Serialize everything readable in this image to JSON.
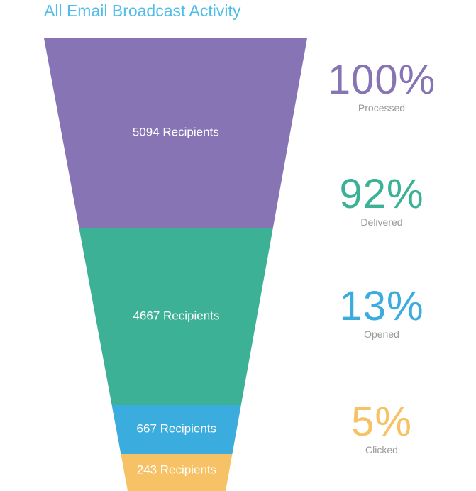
{
  "title": "All Email Broadcast Activity",
  "colors": {
    "title": "#4fbde9",
    "stage_colors": [
      "#8674b5",
      "#3db195",
      "#3aacdd",
      "#f7c265"
    ]
  },
  "chart_data": {
    "type": "funnel",
    "title": "All Email Broadcast Activity",
    "stages": [
      {
        "recipients": 5094,
        "label": "5094 Recipients",
        "percent": "100%",
        "status": "Processed"
      },
      {
        "recipients": 4667,
        "label": "4667 Recipients",
        "percent": "92%",
        "status": "Delivered"
      },
      {
        "recipients": 667,
        "label": "667 Recipients",
        "percent": "13%",
        "status": "Opened"
      },
      {
        "recipients": 243,
        "label": "243 Recipients",
        "percent": "5%",
        "status": "Clicked"
      }
    ]
  }
}
